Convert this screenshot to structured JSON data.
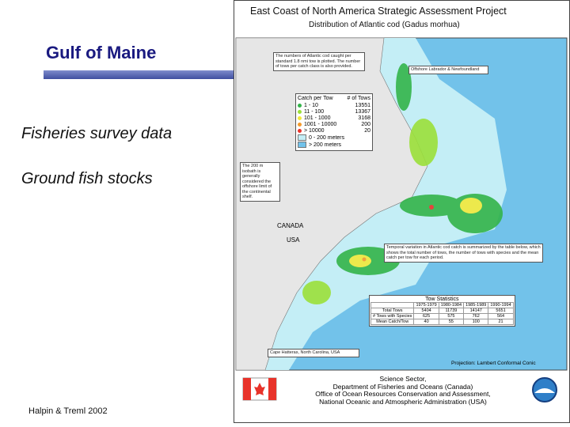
{
  "slide": {
    "title": "Gulf of Maine",
    "bullets": [
      "Fisheries survey data",
      "Ground fish stocks"
    ],
    "citation": "Halpin & Treml 2002"
  },
  "map": {
    "title": "East Coast of North America Strategic Assessment Project",
    "subtitle": "Distribution of Atlantic cod (Gadus morhua)",
    "note_top": "The numbers of Atlantic cod caught per standard 1.8 nmi tow is plotted. The number of tows per catch class is also provided.",
    "note_right": "Offshore Labrador & Newfoundland",
    "legend": {
      "catch_header": "Catch per Tow",
      "tows_header": "# of Tows",
      "classes": [
        {
          "label": "1 - 10",
          "tows": 13551,
          "color": "#33b44a"
        },
        {
          "label": "11 - 100",
          "tows": 13367,
          "color": "#9be03a"
        },
        {
          "label": "101 - 1000",
          "tows": 3168,
          "color": "#f2e93a"
        },
        {
          "label": "1001 - 10000",
          "tows": 200,
          "color": "#f59a2a"
        },
        {
          "label": "> 10000",
          "tows": 20,
          "color": "#e8332a"
        }
      ],
      "depth": [
        {
          "label": "0 - 200 meters",
          "color": "#c4eef6"
        },
        {
          "label": "> 200 meters",
          "color": "#72c2ea"
        }
      ]
    },
    "note_left": "The 200 m isobath is generally considered the offshore limit of the continental shelf.",
    "place_labels": [
      "CANADA",
      "USA"
    ],
    "note_temporal": "Temporal variation in Atlantic cod catch is summarized by the table below, which shows the total number of tows, the number of tows with species and the mean catch per tow for each period.",
    "stats": {
      "title": "Tow Statistics",
      "columns": [
        "1975-1979",
        "1980-1984",
        "1985-1989",
        "1990-1994"
      ],
      "rows": [
        [
          "Total Tows",
          5404,
          11739,
          14147,
          5651
        ],
        [
          "# Tows with Species",
          625,
          575,
          762,
          564
        ],
        [
          "Mean Catch/Tow",
          40,
          55,
          100,
          21
        ]
      ]
    },
    "note_bottom": "Cape Hatteras, North Carolina, USA",
    "projection": "Projection: Lambert Conformal Conic",
    "credits": [
      "Science Sector,",
      "Department of Fisheries and Oceans (Canada)",
      "Office of Ocean Resources Conservation and Assessment,",
      "National Oceanic and Atmospheric Administration (USA)"
    ]
  }
}
